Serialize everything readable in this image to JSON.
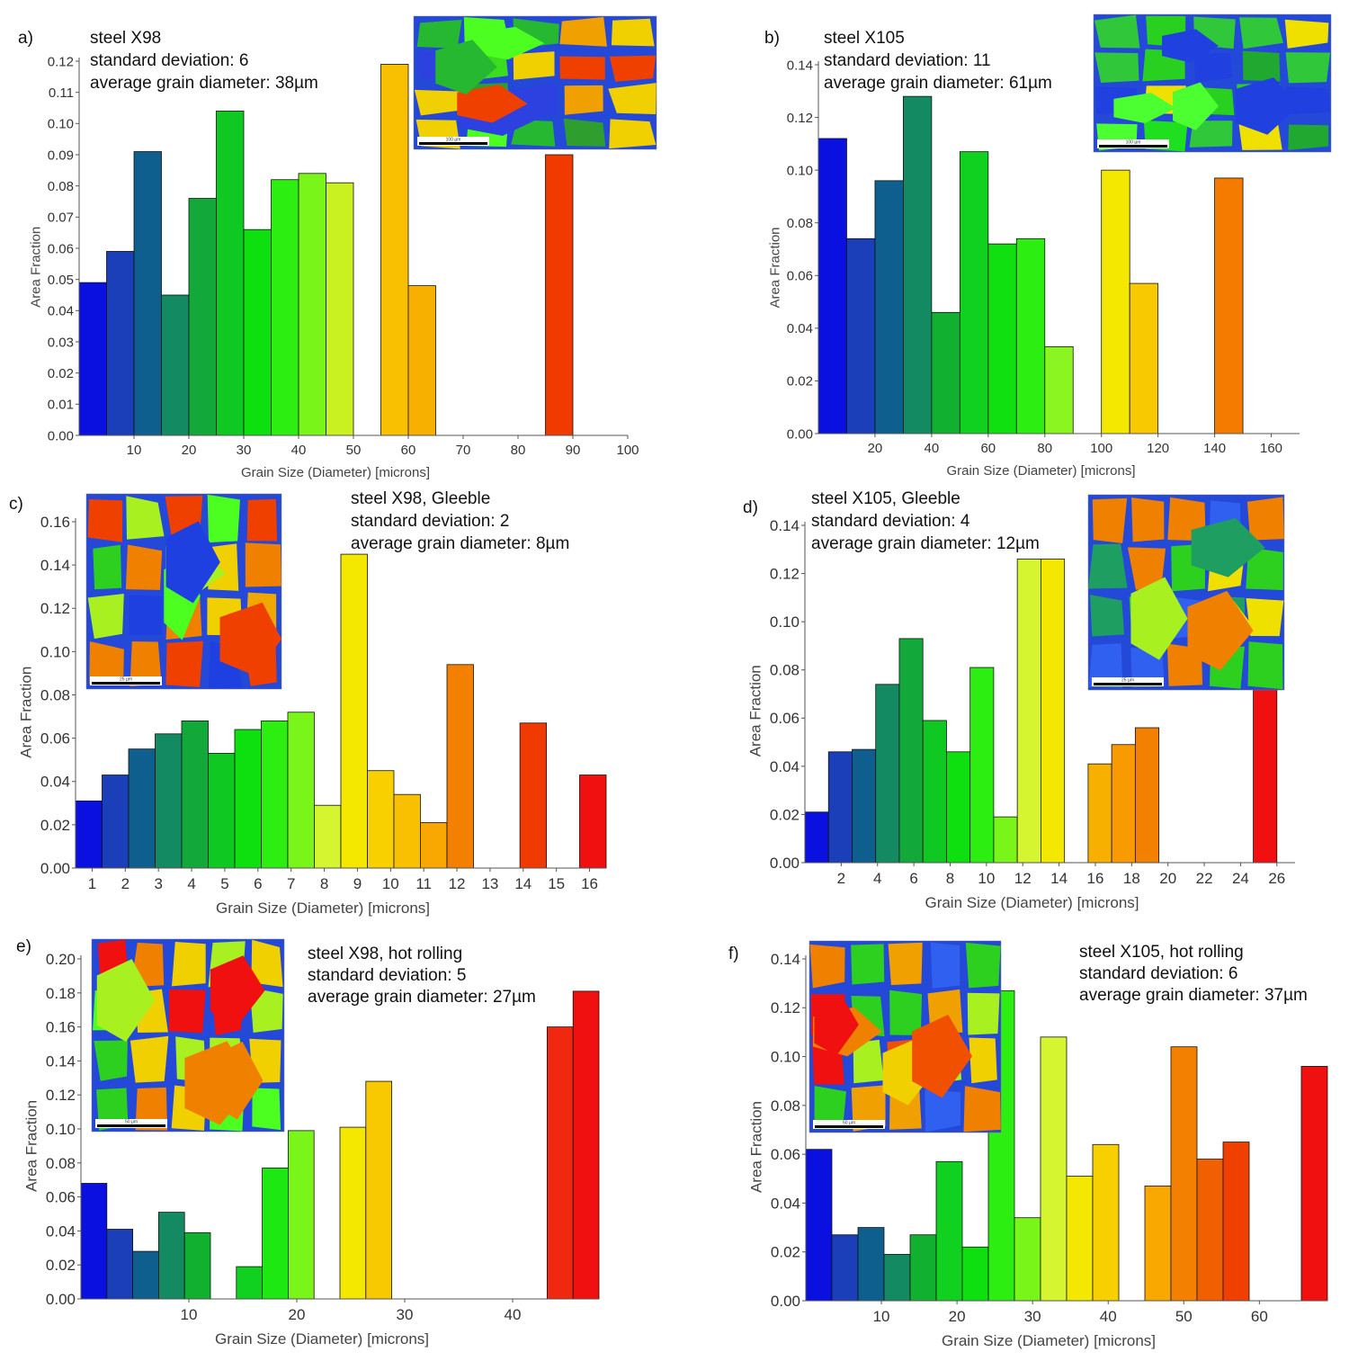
{
  "chart_data": [
    {
      "panel": "a)",
      "type": "bar",
      "xlabel": "Grain Size (Diameter) [microns]",
      "ylabel": "Area Fraction",
      "xlim": [
        0,
        100
      ],
      "ylim": [
        0,
        0.12
      ],
      "x_ticks": [
        10,
        20,
        30,
        40,
        50,
        60,
        70,
        80,
        90,
        100
      ],
      "y_ticks": [
        0.0,
        0.01,
        0.02,
        0.03,
        0.04,
        0.05,
        0.06,
        0.07,
        0.08,
        0.09,
        0.1,
        0.11,
        0.12
      ],
      "y_tick_labels": [
        "0.00",
        "0.01",
        "0.02",
        "0.03",
        "0.04",
        "0.05",
        "0.06",
        "0.07",
        "0.08",
        "0.09",
        "0.10",
        "0.11",
        "0.12"
      ],
      "info_lines": [
        "steel X98",
        "standard deviation: 6",
        "average grain diameter: 38µm"
      ],
      "inset_scale_label": "100 µm",
      "bars": [
        {
          "x0": 0,
          "x1": 5,
          "value": 0.049,
          "color": "#0a10e0"
        },
        {
          "x0": 5,
          "x1": 10,
          "value": 0.059,
          "color": "#1a3fb8"
        },
        {
          "x0": 10,
          "x1": 15,
          "value": 0.091,
          "color": "#0e5f8e"
        },
        {
          "x0": 15,
          "x1": 20,
          "value": 0.045,
          "color": "#138a62"
        },
        {
          "x0": 20,
          "x1": 25,
          "value": 0.076,
          "color": "#12a83a"
        },
        {
          "x0": 25,
          "x1": 30,
          "value": 0.104,
          "color": "#10c822"
        },
        {
          "x0": 30,
          "x1": 35,
          "value": 0.066,
          "color": "#0ee010"
        },
        {
          "x0": 35,
          "x1": 40,
          "value": 0.082,
          "color": "#2cee10"
        },
        {
          "x0": 40,
          "x1": 45,
          "value": 0.084,
          "color": "#7af51a"
        },
        {
          "x0": 45,
          "x1": 50,
          "value": 0.081,
          "color": "#c9f020"
        },
        {
          "x0": 55,
          "x1": 60,
          "value": 0.119,
          "color": "#f8c000"
        },
        {
          "x0": 60,
          "x1": 65,
          "value": 0.048,
          "color": "#f8b000"
        },
        {
          "x0": 85,
          "x1": 90,
          "value": 0.09,
          "color": "#f03a00"
        }
      ]
    },
    {
      "panel": "b)",
      "type": "bar",
      "xlabel": "Grain Size (Diameter) [microns]",
      "ylabel": "Area Fraction",
      "xlim": [
        0,
        170
      ],
      "ylim": [
        0,
        0.14
      ],
      "x_ticks": [
        20,
        40,
        60,
        80,
        100,
        120,
        140,
        160
      ],
      "y_ticks": [
        0.0,
        0.02,
        0.04,
        0.06,
        0.08,
        0.1,
        0.12,
        0.14
      ],
      "y_tick_labels": [
        "0.00",
        "0.02",
        "0.04",
        "0.06",
        "0.08",
        "0.10",
        "0.12",
        "0.14"
      ],
      "info_lines": [
        "steel X105",
        "standard deviation: 11",
        "average grain diameter: 61µm"
      ],
      "inset_scale_label": "100 µm",
      "bars": [
        {
          "x0": 0,
          "x1": 10,
          "value": 0.112,
          "color": "#0a10e0"
        },
        {
          "x0": 10,
          "x1": 20,
          "value": 0.074,
          "color": "#1a3fb8"
        },
        {
          "x0": 20,
          "x1": 30,
          "value": 0.096,
          "color": "#0e5f8e"
        },
        {
          "x0": 30,
          "x1": 40,
          "value": 0.128,
          "color": "#138a62"
        },
        {
          "x0": 40,
          "x1": 50,
          "value": 0.046,
          "color": "#12b030"
        },
        {
          "x0": 50,
          "x1": 60,
          "value": 0.107,
          "color": "#10d020"
        },
        {
          "x0": 60,
          "x1": 70,
          "value": 0.072,
          "color": "#10e010"
        },
        {
          "x0": 70,
          "x1": 80,
          "value": 0.074,
          "color": "#2cee10"
        },
        {
          "x0": 80,
          "x1": 90,
          "value": 0.033,
          "color": "#8af520"
        },
        {
          "x0": 100,
          "x1": 110,
          "value": 0.1,
          "color": "#f5e800"
        },
        {
          "x0": 110,
          "x1": 120,
          "value": 0.057,
          "color": "#f8c800"
        },
        {
          "x0": 140,
          "x1": 150,
          "value": 0.097,
          "color": "#f47a00"
        }
      ]
    },
    {
      "panel": "c)",
      "type": "bar",
      "xlabel": "Grain Size (Diameter) [microns]",
      "ylabel": "Area Fraction",
      "xlim": [
        0.5,
        16.5
      ],
      "ylim": [
        0,
        0.16
      ],
      "x_ticks": [
        1,
        2,
        3,
        4,
        5,
        6,
        7,
        8,
        9,
        10,
        11,
        12,
        13,
        14,
        15,
        16
      ],
      "y_ticks": [
        0.0,
        0.02,
        0.04,
        0.06,
        0.08,
        0.1,
        0.12,
        0.14,
        0.16
      ],
      "y_tick_labels": [
        "0.00",
        "0.02",
        "0.04",
        "0.06",
        "0.08",
        "0.10",
        "0.12",
        "0.14",
        "0.16"
      ],
      "info_lines": [
        "steel X98, Gleeble",
        "standard deviation: 2",
        "average grain diameter: 8µm"
      ],
      "inset_scale_label": "25 µm",
      "bars": [
        {
          "x0": 0.5,
          "x1": 1.3,
          "value": 0.031,
          "color": "#0a10e0"
        },
        {
          "x0": 1.3,
          "x1": 2.1,
          "value": 0.043,
          "color": "#1a3fb8"
        },
        {
          "x0": 2.1,
          "x1": 2.9,
          "value": 0.055,
          "color": "#0e5f8e"
        },
        {
          "x0": 2.9,
          "x1": 3.7,
          "value": 0.062,
          "color": "#138a62"
        },
        {
          "x0": 3.7,
          "x1": 4.5,
          "value": 0.068,
          "color": "#12a83a"
        },
        {
          "x0": 4.5,
          "x1": 5.3,
          "value": 0.053,
          "color": "#10c822"
        },
        {
          "x0": 5.3,
          "x1": 6.1,
          "value": 0.064,
          "color": "#0ee010"
        },
        {
          "x0": 6.1,
          "x1": 6.9,
          "value": 0.068,
          "color": "#2cee10"
        },
        {
          "x0": 6.9,
          "x1": 7.7,
          "value": 0.072,
          "color": "#7af51a"
        },
        {
          "x0": 7.7,
          "x1": 8.5,
          "value": 0.029,
          "color": "#d4f530"
        },
        {
          "x0": 8.5,
          "x1": 9.3,
          "value": 0.145,
          "color": "#f5e800"
        },
        {
          "x0": 9.3,
          "x1": 10.1,
          "value": 0.045,
          "color": "#f8d000"
        },
        {
          "x0": 10.1,
          "x1": 10.9,
          "value": 0.034,
          "color": "#f8c000"
        },
        {
          "x0": 10.9,
          "x1": 11.7,
          "value": 0.021,
          "color": "#f8a800"
        },
        {
          "x0": 11.7,
          "x1": 12.5,
          "value": 0.094,
          "color": "#f48000"
        },
        {
          "x0": 13.9,
          "x1": 14.7,
          "value": 0.067,
          "color": "#f03a00"
        },
        {
          "x0": 15.7,
          "x1": 16.5,
          "value": 0.043,
          "color": "#f01010"
        }
      ]
    },
    {
      "panel": "d)",
      "type": "bar",
      "xlabel": "Grain Size (Diameter) [microns]",
      "ylabel": "Area Fraction",
      "xlim": [
        0,
        27
      ],
      "ylim": [
        0,
        0.14
      ],
      "x_ticks": [
        2,
        4,
        6,
        8,
        10,
        12,
        14,
        16,
        18,
        20,
        22,
        24,
        26
      ],
      "y_ticks": [
        0.0,
        0.02,
        0.04,
        0.06,
        0.08,
        0.1,
        0.12,
        0.14
      ],
      "y_tick_labels": [
        "0.00",
        "0.02",
        "0.04",
        "0.06",
        "0.08",
        "0.10",
        "0.12",
        "0.14"
      ],
      "info_lines": [
        "steel X105, Gleeble",
        "standard deviation: 4",
        "average grain diameter: 12µm"
      ],
      "inset_scale_label": "25 µm",
      "bars": [
        {
          "x0": 0,
          "x1": 1.3,
          "value": 0.021,
          "color": "#0a10e0"
        },
        {
          "x0": 1.3,
          "x1": 2.6,
          "value": 0.046,
          "color": "#1a3fb8"
        },
        {
          "x0": 2.6,
          "x1": 3.9,
          "value": 0.047,
          "color": "#0e5f8e"
        },
        {
          "x0": 3.9,
          "x1": 5.2,
          "value": 0.074,
          "color": "#138a62"
        },
        {
          "x0": 5.2,
          "x1": 6.5,
          "value": 0.093,
          "color": "#12a83a"
        },
        {
          "x0": 6.5,
          "x1": 7.8,
          "value": 0.059,
          "color": "#10c822"
        },
        {
          "x0": 7.8,
          "x1": 9.1,
          "value": 0.046,
          "color": "#0ee010"
        },
        {
          "x0": 9.1,
          "x1": 10.4,
          "value": 0.081,
          "color": "#2cee10"
        },
        {
          "x0": 10.4,
          "x1": 11.7,
          "value": 0.019,
          "color": "#7af51a"
        },
        {
          "x0": 11.7,
          "x1": 13.0,
          "value": 0.126,
          "color": "#d4f530"
        },
        {
          "x0": 13.0,
          "x1": 14.3,
          "value": 0.126,
          "color": "#f5e800"
        },
        {
          "x0": 15.6,
          "x1": 16.9,
          "value": 0.041,
          "color": "#f8b000"
        },
        {
          "x0": 16.9,
          "x1": 18.2,
          "value": 0.049,
          "color": "#f89a00"
        },
        {
          "x0": 18.2,
          "x1": 19.5,
          "value": 0.056,
          "color": "#f48000"
        },
        {
          "x0": 24.7,
          "x1": 26.0,
          "value": 0.11,
          "color": "#f01010"
        }
      ]
    },
    {
      "panel": "e)",
      "type": "bar",
      "xlabel": "Grain Size (Diameter) [microns]",
      "ylabel": "Area Fraction",
      "xlim": [
        0,
        48
      ],
      "ylim": [
        0,
        0.2
      ],
      "x_ticks": [
        10,
        20,
        30,
        40
      ],
      "y_ticks": [
        0.0,
        0.02,
        0.04,
        0.06,
        0.08,
        0.1,
        0.12,
        0.14,
        0.16,
        0.18,
        0.2
      ],
      "y_tick_labels": [
        "0.00",
        "0.02",
        "0.04",
        "0.06",
        "0.08",
        "0.10",
        "0.12",
        "0.14",
        "0.16",
        "0.18",
        "0.20"
      ],
      "info_lines": [
        "steel X98, hot rolling",
        "standard deviation: 5",
        "average grain diameter: 27µm"
      ],
      "inset_scale_label": "50 µm",
      "bars": [
        {
          "x0": 0,
          "x1": 2.4,
          "value": 0.068,
          "color": "#0a10e0"
        },
        {
          "x0": 2.4,
          "x1": 4.8,
          "value": 0.041,
          "color": "#1a3fb8"
        },
        {
          "x0": 4.8,
          "x1": 7.2,
          "value": 0.028,
          "color": "#0e5f8e"
        },
        {
          "x0": 7.2,
          "x1": 9.6,
          "value": 0.051,
          "color": "#138a62"
        },
        {
          "x0": 9.6,
          "x1": 12.0,
          "value": 0.039,
          "color": "#12b030"
        },
        {
          "x0": 14.4,
          "x1": 16.8,
          "value": 0.019,
          "color": "#10d020"
        },
        {
          "x0": 16.8,
          "x1": 19.2,
          "value": 0.077,
          "color": "#1ee812"
        },
        {
          "x0": 19.2,
          "x1": 21.6,
          "value": 0.099,
          "color": "#7af51a"
        },
        {
          "x0": 24.0,
          "x1": 26.4,
          "value": 0.101,
          "color": "#f5e800"
        },
        {
          "x0": 26.4,
          "x1": 28.8,
          "value": 0.128,
          "color": "#f8c800"
        },
        {
          "x0": 43.2,
          "x1": 45.6,
          "value": 0.16,
          "color": "#f02810"
        },
        {
          "x0": 45.6,
          "x1": 48.0,
          "value": 0.181,
          "color": "#f01010"
        }
      ]
    },
    {
      "panel": "f)",
      "type": "bar",
      "xlabel": "Grain Size (Diameter) [microns]",
      "ylabel": "Area Fraction",
      "xlim": [
        0,
        69
      ],
      "ylim": [
        0,
        0.14
      ],
      "x_ticks": [
        10,
        20,
        30,
        40,
        50,
        60
      ],
      "y_ticks": [
        0.0,
        0.02,
        0.04,
        0.06,
        0.08,
        0.1,
        0.12,
        0.14
      ],
      "y_tick_labels": [
        "0.00",
        "0.02",
        "0.04",
        "0.06",
        "0.08",
        "0.10",
        "0.12",
        "0.14"
      ],
      "info_lines": [
        "steel X105, hot rolling",
        "standard deviation: 6",
        "average grain diameter: 37µm"
      ],
      "inset_scale_label": "50 µm",
      "bars": [
        {
          "x0": 0,
          "x1": 3.45,
          "value": 0.062,
          "color": "#0a10e0"
        },
        {
          "x0": 3.45,
          "x1": 6.9,
          "value": 0.027,
          "color": "#1a3fb8"
        },
        {
          "x0": 6.9,
          "x1": 10.35,
          "value": 0.03,
          "color": "#0e5f8e"
        },
        {
          "x0": 10.35,
          "x1": 13.8,
          "value": 0.019,
          "color": "#138a62"
        },
        {
          "x0": 13.8,
          "x1": 17.25,
          "value": 0.027,
          "color": "#12b030"
        },
        {
          "x0": 17.25,
          "x1": 20.7,
          "value": 0.057,
          "color": "#10d020"
        },
        {
          "x0": 20.7,
          "x1": 24.15,
          "value": 0.022,
          "color": "#0ee010"
        },
        {
          "x0": 24.15,
          "x1": 27.6,
          "value": 0.127,
          "color": "#2cee10"
        },
        {
          "x0": 27.6,
          "x1": 31.05,
          "value": 0.034,
          "color": "#7af51a"
        },
        {
          "x0": 31.05,
          "x1": 34.5,
          "value": 0.108,
          "color": "#d4f530"
        },
        {
          "x0": 34.5,
          "x1": 37.95,
          "value": 0.051,
          "color": "#f5e800"
        },
        {
          "x0": 37.95,
          "x1": 41.4,
          "value": 0.064,
          "color": "#f8d000"
        },
        {
          "x0": 44.85,
          "x1": 48.3,
          "value": 0.047,
          "color": "#f8a800"
        },
        {
          "x0": 48.3,
          "x1": 51.75,
          "value": 0.104,
          "color": "#f48000"
        },
        {
          "x0": 51.75,
          "x1": 55.2,
          "value": 0.058,
          "color": "#f06000"
        },
        {
          "x0": 55.2,
          "x1": 58.65,
          "value": 0.065,
          "color": "#f04000"
        },
        {
          "x0": 65.55,
          "x1": 69.0,
          "value": 0.096,
          "color": "#f01010"
        }
      ]
    }
  ]
}
